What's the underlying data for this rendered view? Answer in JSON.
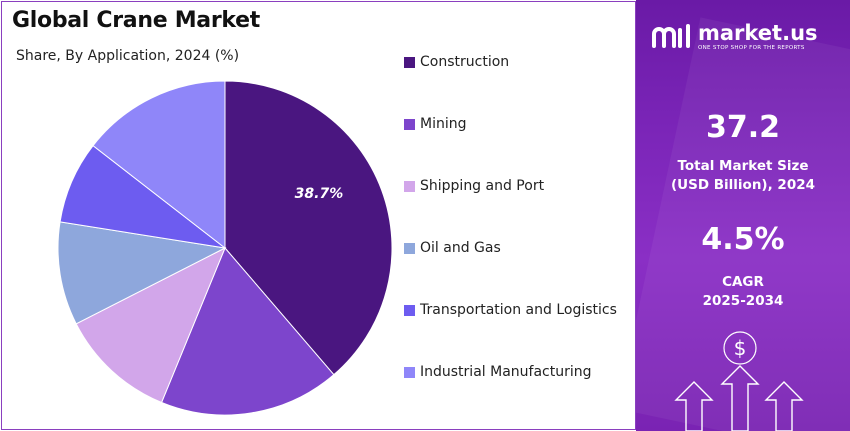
{
  "title": "Global Crane Market",
  "subtitle": "Share, By Application, 2024 (%)",
  "colors": {
    "panel_gradient_top": "#6a1aa6",
    "panel_gradient_bottom": "#8a2fc5",
    "border": "#8a3fbf"
  },
  "chart_data": {
    "type": "pie",
    "title": "Global Crane Market",
    "subtitle": "Share, By Application, 2024 (%)",
    "legend_position": "right",
    "slices": [
      {
        "name": "Construction",
        "value": 38.7,
        "color": "#4a1680",
        "label": "38.7%"
      },
      {
        "name": "Mining",
        "value": 17.5,
        "color": "#7d45cc",
        "label": ""
      },
      {
        "name": "Shipping and Port",
        "value": 11.3,
        "color": "#d2a6ea",
        "label": ""
      },
      {
        "name": "Oil and Gas",
        "value": 10.0,
        "color": "#8ea7dc",
        "label": ""
      },
      {
        "name": "Transportation and Logistics",
        "value": 8.0,
        "color": "#6d5cf0",
        "label": ""
      },
      {
        "name": "Industrial Manufacturing",
        "value": 14.5,
        "color": "#8f86f9",
        "label": ""
      }
    ]
  },
  "brand": {
    "name": "market.us",
    "tagline": "ONE STOP SHOP FOR THE REPORTS"
  },
  "stats": [
    {
      "value": "37.2",
      "label_line1": "Total Market Size",
      "label_line2": "(USD Billion), 2024"
    },
    {
      "value": "4.5%",
      "label_line1": "CAGR",
      "label_line2": "2025-2034"
    }
  ],
  "icons": [
    "dollar-icon",
    "up-arrow-icon"
  ]
}
